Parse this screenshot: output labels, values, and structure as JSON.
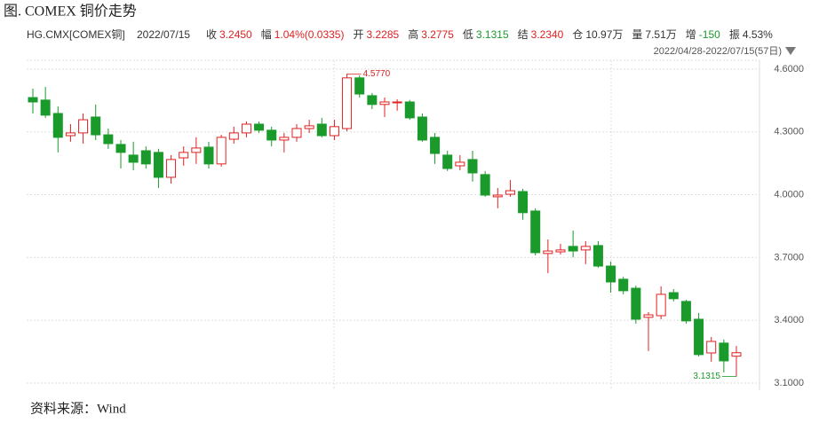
{
  "chart_data": {
    "type": "candlestick",
    "title": "图. COMEX 铜价走势",
    "header": {
      "symbol": "HG.CMX[COMEX铜]",
      "date": "2022/07/15",
      "fields": [
        {
          "label": "收",
          "value": "3.2450",
          "color": "#e02020"
        },
        {
          "label": "幅",
          "value": "1.04%(0.0335)",
          "color": "#e02020"
        },
        {
          "label": "开",
          "value": "3.2285",
          "color": "#e02020"
        },
        {
          "label": "高",
          "value": "3.2775",
          "color": "#e02020"
        },
        {
          "label": "低",
          "value": "3.1315",
          "color": "#1a9a2a"
        },
        {
          "label": "结",
          "value": "3.2340",
          "color": "#e02020"
        },
        {
          "label": "仓",
          "value": "10.97万",
          "color": "#333333"
        },
        {
          "label": "量",
          "value": "7.51万",
          "color": "#333333"
        },
        {
          "label": "增",
          "value": "-150",
          "color": "#1a9a2a"
        },
        {
          "label": "振",
          "value": "4.53%",
          "color": "#333333"
        }
      ]
    },
    "range": "2022/04/28-2022/07/15(57日)",
    "source": "资料来源：Wind",
    "up_color": "#e02020",
    "down_color": "#1a9a2a",
    "open": [
      4.464,
      4.452,
      4.388,
      4.282,
      4.295,
      4.371,
      4.286,
      4.24,
      4.189,
      4.21,
      4.202,
      4.083,
      4.176,
      4.202,
      4.227,
      4.147,
      4.265,
      4.295,
      4.337,
      4.308,
      4.261,
      4.274,
      4.316,
      4.337,
      4.282,
      4.316,
      4.558,
      4.473,
      4.431,
      4.439,
      4.443,
      4.371,
      4.274,
      4.189,
      4.138,
      4.168,
      4.096,
      3.99,
      4.002,
      4.015,
      3.922,
      3.719,
      3.727,
      3.753,
      3.736,
      3.757,
      3.659,
      3.596,
      3.553,
      3.414,
      3.422,
      3.532,
      3.49,
      3.405,
      3.244,
      3.291,
      3.2285
    ],
    "high": [
      4.507,
      4.515,
      4.422,
      4.337,
      4.388,
      4.431,
      4.316,
      4.261,
      4.253,
      4.231,
      4.219,
      4.189,
      4.231,
      4.274,
      4.253,
      4.286,
      4.325,
      4.35,
      4.35,
      4.325,
      4.295,
      4.337,
      4.358,
      4.367,
      4.358,
      4.577,
      4.57,
      4.486,
      4.464,
      4.456,
      4.452,
      4.388,
      4.295,
      4.21,
      4.189,
      4.21,
      4.113,
      4.032,
      4.07,
      4.028,
      3.935,
      3.786,
      3.765,
      3.829,
      3.778,
      3.778,
      3.681,
      3.608,
      3.566,
      3.439,
      3.562,
      3.549,
      3.498,
      3.435,
      3.32,
      3.308,
      3.2775
    ],
    "low": [
      4.388,
      4.367,
      4.202,
      4.253,
      4.244,
      4.261,
      4.219,
      4.125,
      4.117,
      4.125,
      4.032,
      4.053,
      4.138,
      4.147,
      4.125,
      4.134,
      4.244,
      4.274,
      4.295,
      4.231,
      4.202,
      4.253,
      4.295,
      4.274,
      4.261,
      4.303,
      4.464,
      4.409,
      4.371,
      4.401,
      4.358,
      4.253,
      4.147,
      4.113,
      4.117,
      4.062,
      3.99,
      3.935,
      3.99,
      3.88,
      3.71,
      3.625,
      3.714,
      3.701,
      3.668,
      3.651,
      3.532,
      3.524,
      3.384,
      3.253,
      3.405,
      3.49,
      3.384,
      3.227,
      3.202,
      3.151,
      3.1315
    ],
    "close": [
      4.443,
      4.38,
      4.274,
      4.295,
      4.358,
      4.286,
      4.244,
      4.202,
      4.155,
      4.147,
      4.083,
      4.168,
      4.202,
      4.223,
      4.147,
      4.274,
      4.295,
      4.337,
      4.308,
      4.261,
      4.274,
      4.316,
      4.329,
      4.282,
      4.325,
      4.558,
      4.481,
      4.431,
      4.443,
      4.443,
      4.367,
      4.261,
      4.197,
      4.125,
      4.155,
      4.104,
      3.998,
      3.998,
      4.019,
      3.914,
      3.723,
      3.731,
      3.736,
      3.731,
      3.753,
      3.659,
      3.583,
      3.541,
      3.405,
      3.426,
      3.524,
      3.503,
      3.397,
      3.236,
      3.299,
      3.206,
      3.245
    ],
    "ylim": [
      3.066,
      4.642
    ],
    "yticks": [
      {
        "value": 4.6,
        "label": "4.6000"
      },
      {
        "value": 4.3,
        "label": "4.3000"
      },
      {
        "value": 4.0,
        "label": "4.0000"
      },
      {
        "value": 3.7,
        "label": "3.7000"
      },
      {
        "value": 3.4,
        "label": "3.4000"
      },
      {
        "value": 3.1,
        "label": "3.1000"
      }
    ],
    "grid": true,
    "max_marker": {
      "value": 4.577,
      "label": "4.5770"
    },
    "min_marker": {
      "value": 3.1315,
      "label": "3.1315"
    }
  }
}
